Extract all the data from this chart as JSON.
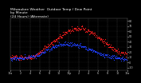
{
  "title": "Milwaukee Weather  Outdoor Temp / Dew Point\nby Minute\n(24 Hours) (Alternate)",
  "bg_color": "#000000",
  "plot_bg_color": "#000000",
  "grid_color": "#555555",
  "red_color": "#ff2020",
  "blue_color": "#2040ff",
  "title_color": "#ffffff",
  "tick_color": "#cccccc",
  "x_ticks": [
    0,
    120,
    240,
    360,
    480,
    600,
    720,
    840,
    960,
    1080,
    1200,
    1320,
    1440
  ],
  "x_tick_labels": [
    "12a",
    "2",
    "4",
    "6",
    "8",
    "10",
    "12p",
    "2",
    "4",
    "6",
    "8",
    "10",
    "12a"
  ],
  "y_ticks": [
    -10,
    0,
    10,
    20,
    30,
    40,
    50,
    60,
    70,
    80
  ],
  "y_tick_labels": [
    "-10",
    "0",
    "10",
    "20",
    "30",
    "40",
    "50",
    "60",
    "70",
    "80"
  ],
  "ylim": [
    -15,
    85
  ],
  "xlim": [
    0,
    1440
  ],
  "title_fontsize": 3.2,
  "tick_fontsize": 2.4,
  "marker_size": 0.8,
  "seed": 42
}
